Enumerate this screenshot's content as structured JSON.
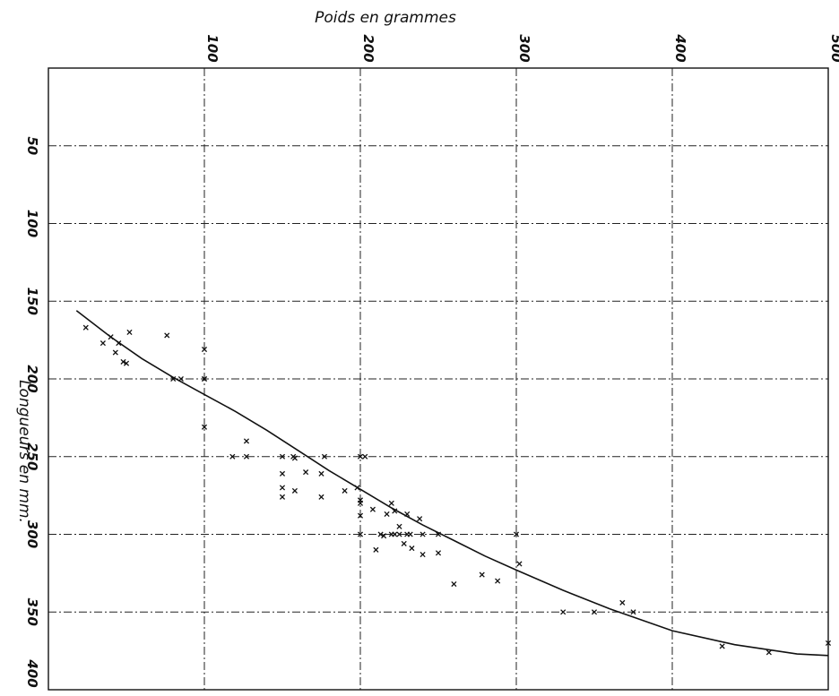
{
  "chart_data": {
    "type": "scatter",
    "title": "",
    "xlabel": "Poids en grammes",
    "ylabel": "Longueurs en mm.",
    "x_axis_position": "top",
    "y_axis_inverted": true,
    "xlim": [
      0,
      500
    ],
    "ylim": [
      0,
      400
    ],
    "x_ticks": [
      "100",
      "200",
      "300",
      "400",
      "500"
    ],
    "y_ticks": [
      "50",
      "100",
      "150",
      "200",
      "250",
      "300",
      "350",
      "400"
    ],
    "grid": true,
    "legend": "none",
    "series": [
      {
        "kind": "points",
        "marker": "x",
        "x": [
          24,
          35,
          40,
          43,
          45,
          48,
          50,
          52,
          76,
          80,
          85,
          100,
          100,
          100,
          100,
          118,
          127,
          127,
          150,
          150,
          150,
          150,
          157,
          158,
          158,
          165,
          175,
          175,
          177,
          190,
          198,
          200,
          200,
          200,
          200,
          200,
          203,
          208,
          210,
          213,
          215,
          217,
          220,
          220,
          222,
          222,
          225,
          225,
          228,
          230,
          230,
          232,
          233,
          238,
          240,
          240,
          250,
          250,
          260,
          278,
          288,
          300,
          302,
          330,
          350,
          368,
          375,
          432,
          462,
          500
        ],
        "y": [
          167,
          177,
          173,
          183,
          177,
          189,
          190,
          170,
          172,
          200,
          200,
          181,
          200,
          200,
          231,
          250,
          250,
          240,
          250,
          270,
          276,
          261,
          250,
          251,
          272,
          260,
          261,
          276,
          250,
          272,
          270,
          300,
          278,
          280,
          250,
          288,
          250,
          284,
          310,
          300,
          301,
          287,
          280,
          300,
          285,
          300,
          300,
          295,
          306,
          300,
          287,
          300,
          309,
          290,
          313,
          300,
          300,
          312,
          332,
          326,
          330,
          300,
          319,
          350,
          350,
          344,
          350,
          372,
          376,
          370
        ]
      },
      {
        "kind": "fitted-curve",
        "x": [
          18,
          40,
          60,
          80,
          100,
          120,
          140,
          160,
          180,
          200,
          220,
          240,
          260,
          280,
          300,
          330,
          360,
          400,
          440,
          480,
          500
        ],
        "y": [
          156,
          173,
          187,
          199,
          210,
          221,
          233,
          246,
          259,
          271,
          283,
          294,
          304,
          314,
          323,
          336,
          348,
          362,
          371,
          377,
          378
        ]
      }
    ]
  }
}
